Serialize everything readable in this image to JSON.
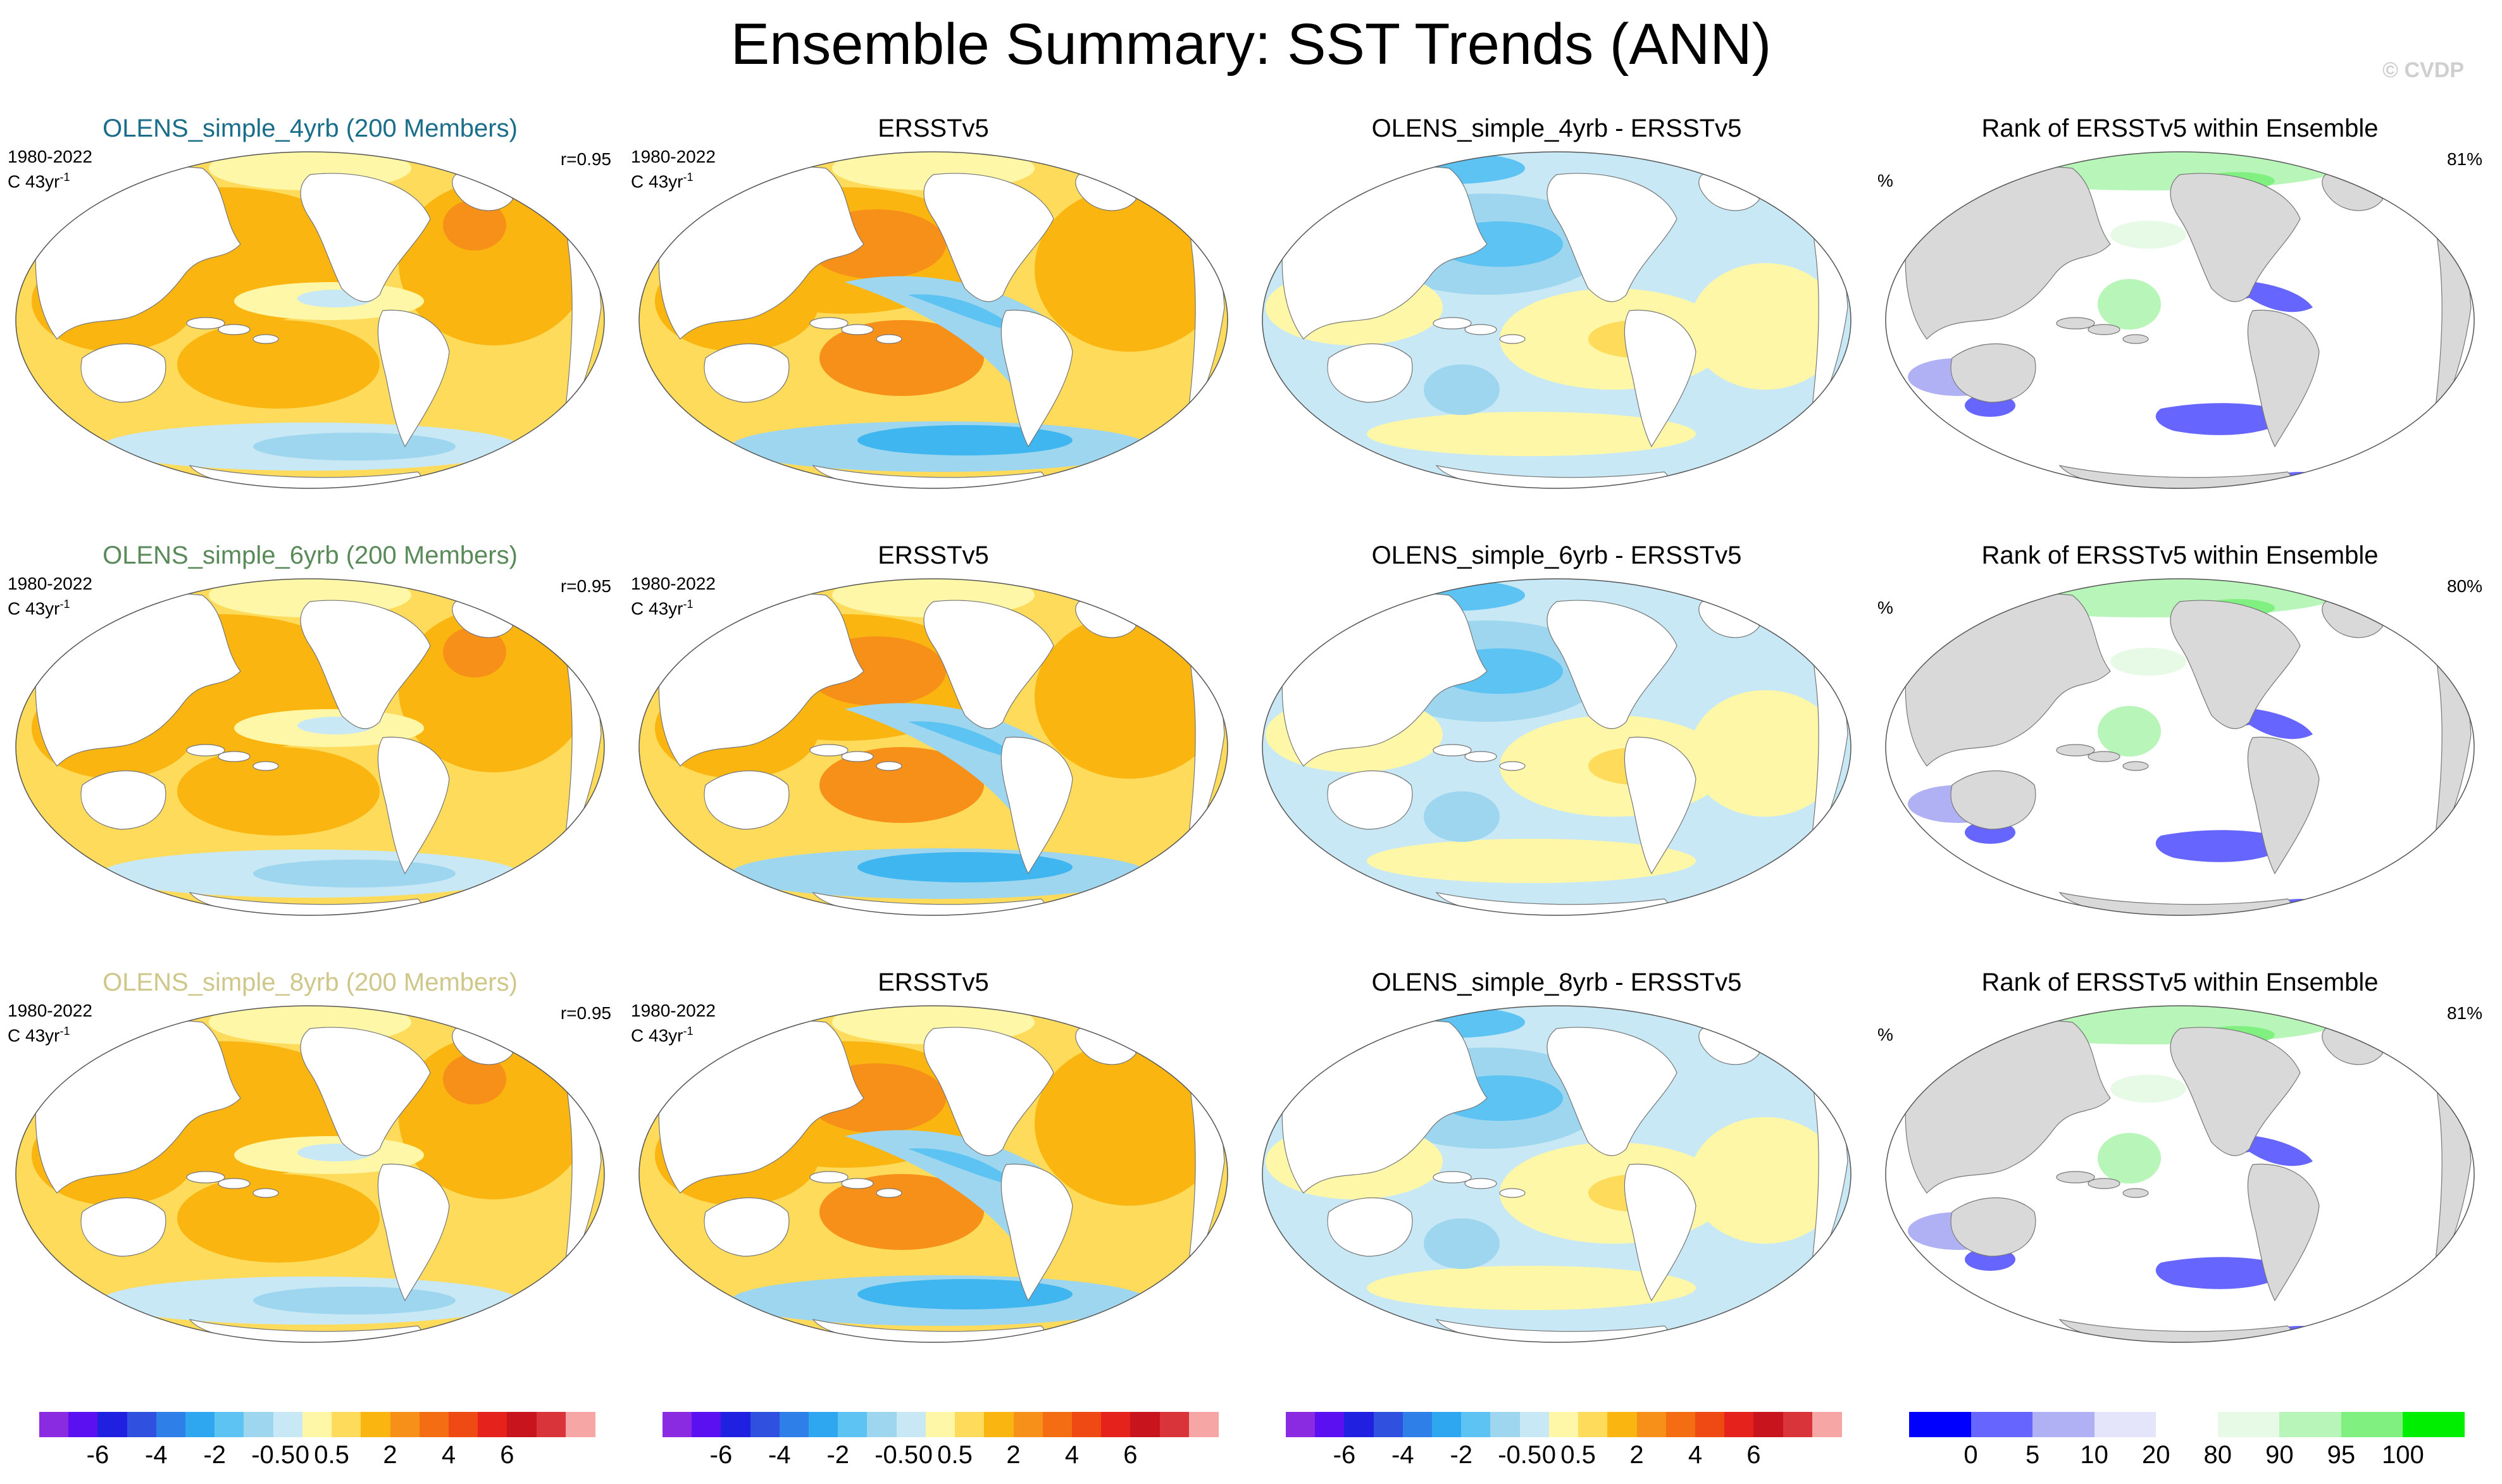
{
  "title": "Ensemble Summary: SST Trends (ANN)",
  "copyright": "© CVDP",
  "colors": {
    "model_4yrb": "#1a6e8a",
    "model_6yrb": "#5a8a5a",
    "model_8yrb": "#cfc78a",
    "land_trend": "#ffffff",
    "land_rank": "#d9d9d9",
    "warm": "#fbb511",
    "warm_dark": "#f79018",
    "cool": "#9dd6ee",
    "cool_dark": "#3fb6ef"
  },
  "rows": [
    {
      "model": {
        "title": "OLENS_simple_4yrb (200 Members)",
        "title_color": "#1a6e8a",
        "period": "1980-2022",
        "units": "C 43yr",
        "units_sup": "-1",
        "correlation": "r=0.95"
      },
      "obs": {
        "title": "ERSSTv5",
        "period": "1980-2022",
        "units": "C 43yr",
        "units_sup": "-1"
      },
      "diff": {
        "title": "OLENS_simple_4yrb - ERSSTv5"
      },
      "rank": {
        "title": "Rank of ERSSTv5 within Ensemble",
        "units": "%",
        "value": "81%"
      }
    },
    {
      "model": {
        "title": "OLENS_simple_6yrb (200 Members)",
        "title_color": "#5a8a5a",
        "period": "1980-2022",
        "units": "C 43yr",
        "units_sup": "-1",
        "correlation": "r=0.95"
      },
      "obs": {
        "title": "ERSSTv5",
        "period": "1980-2022",
        "units": "C 43yr",
        "units_sup": "-1"
      },
      "diff": {
        "title": "OLENS_simple_6yrb - ERSSTv5"
      },
      "rank": {
        "title": "Rank of ERSSTv5 within Ensemble",
        "units": "%",
        "value": "80%"
      }
    },
    {
      "model": {
        "title": "OLENS_simple_8yrb (200 Members)",
        "title_color": "#cfc78a",
        "period": "1980-2022",
        "units": "C 43yr",
        "units_sup": "-1",
        "correlation": "r=0.95"
      },
      "obs": {
        "title": "ERSSTv5",
        "period": "1980-2022",
        "units": "C 43yr",
        "units_sup": "-1"
      },
      "diff": {
        "title": "OLENS_simple_8yrb - ERSSTv5"
      },
      "rank": {
        "title": "Rank of ERSSTv5 within Ensemble",
        "units": "%",
        "value": "81%"
      }
    }
  ],
  "trend_colorbar": {
    "colors": [
      "#8a2be2",
      "#5a10f0",
      "#2020e0",
      "#3050e0",
      "#2f7fe8",
      "#2fa6f0",
      "#5cc3f3",
      "#9dd6ee",
      "#c8e8f5",
      "#fff7a8",
      "#fedb5a",
      "#fbb511",
      "#f79018",
      "#f46d12",
      "#ef4a14",
      "#e5231c",
      "#c8141c",
      "#d9343a",
      "#f7a6a6"
    ],
    "labels": [
      "-6",
      "-4",
      "-2",
      "-0.5",
      "0",
      "0.5",
      "2",
      "4",
      "6"
    ],
    "label_positions": [
      2,
      4,
      6,
      8,
      9,
      10,
      12,
      14,
      16
    ]
  },
  "rank_colorbar": {
    "colors": [
      "#0000ff",
      "#6666ff",
      "#b0b0f5",
      "#e4e4fa",
      "#ffffff",
      "#e6fae6",
      "#b8f5b8",
      "#80f080",
      "#00ee00"
    ],
    "labels": [
      "0",
      "5",
      "10",
      "20",
      "80",
      "90",
      "95",
      "100"
    ],
    "label_positions": [
      1,
      2,
      3,
      4,
      5,
      6,
      7,
      8
    ]
  }
}
